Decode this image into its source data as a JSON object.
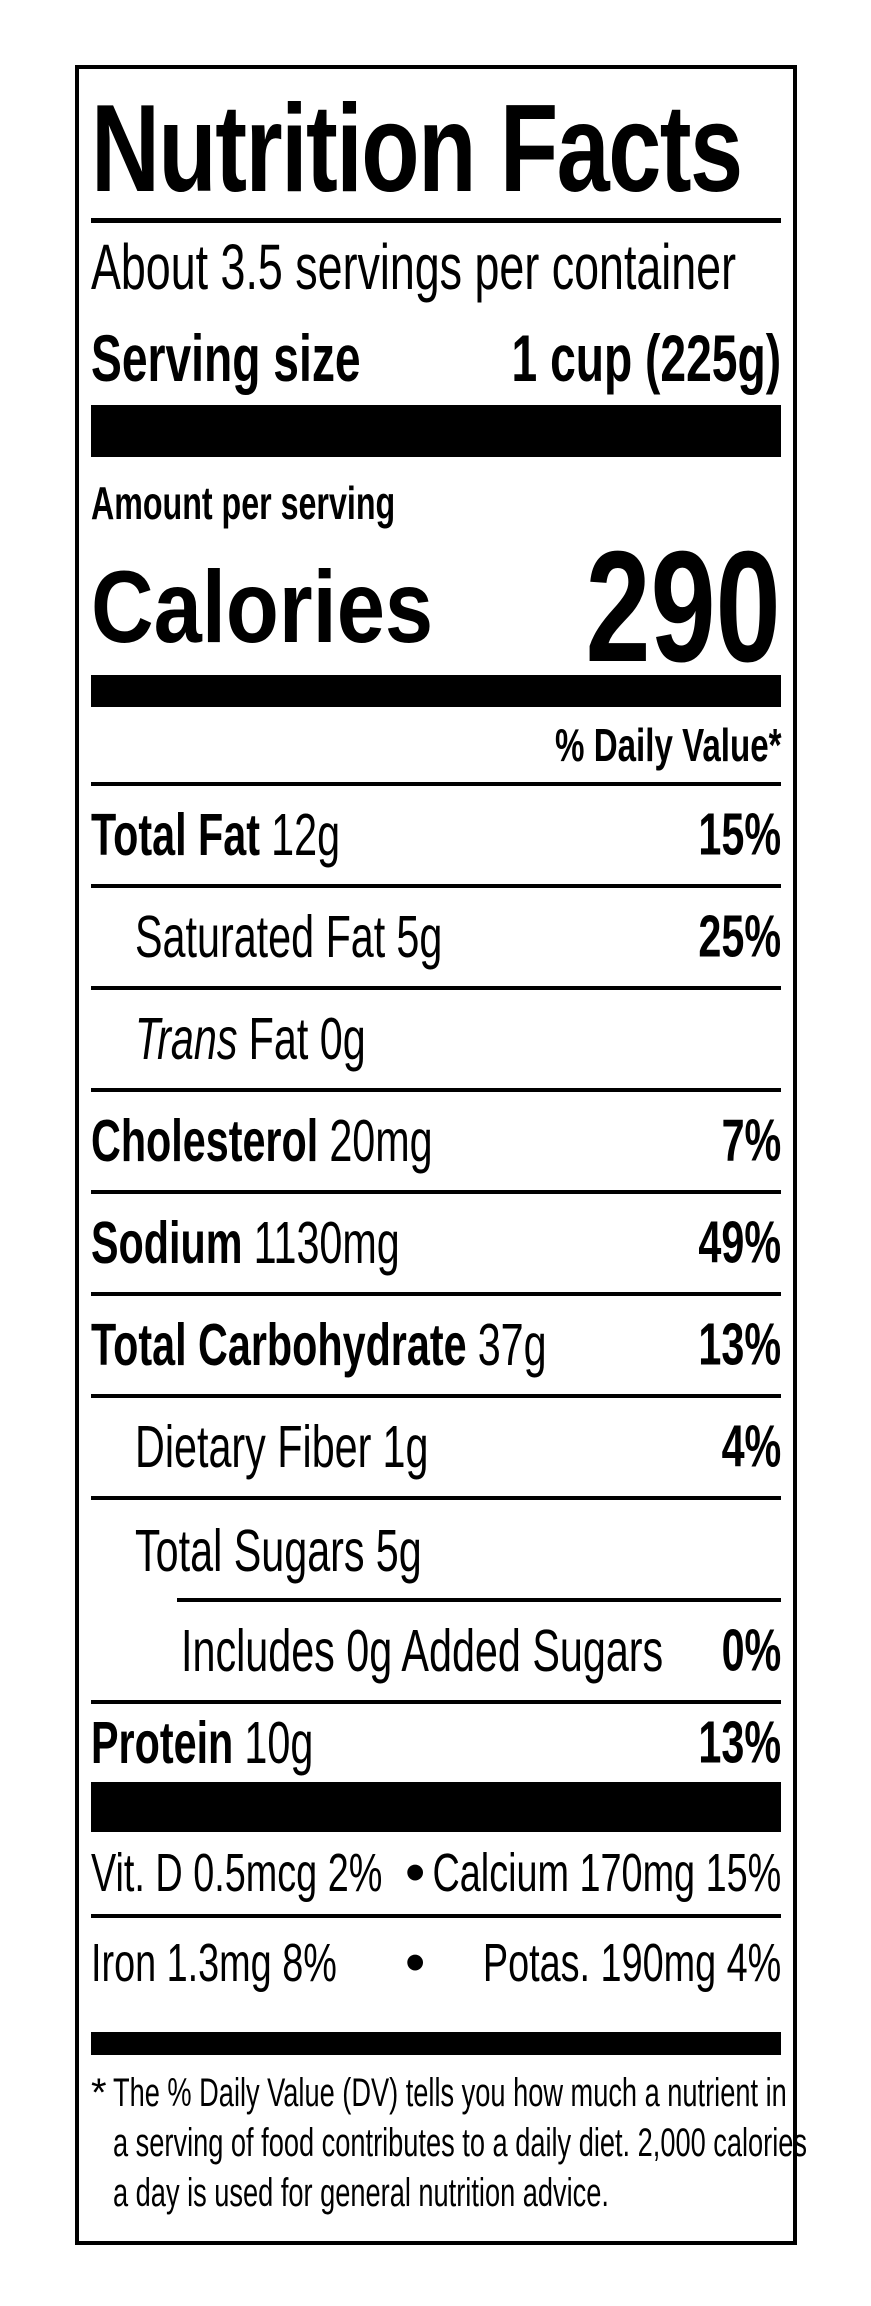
{
  "label": {
    "title": "Nutrition Facts",
    "servings_per_container": "About 3.5 servings per container",
    "serving_size_label": "Serving size",
    "serving_size_value": "1 cup (225g)",
    "amount_per_serving": "Amount per serving",
    "calories_label": "Calories",
    "calories_value": "290",
    "daily_value_header": "% Daily Value*"
  },
  "rows": [
    {
      "name": "Total Fat",
      "amount": "12g",
      "percent": "15%"
    },
    {
      "name": "Saturated Fat",
      "amount": "5g",
      "percent": "25%"
    },
    {
      "name": "Trans",
      "amount": "Fat 0g",
      "percent": ""
    },
    {
      "name": "Cholesterol",
      "amount": "20mg",
      "percent": "7%"
    },
    {
      "name": "Sodium",
      "amount": "1130mg",
      "percent": "49%"
    },
    {
      "name": "Total Carbohydrate",
      "amount": "37g",
      "percent": "13%"
    },
    {
      "name": "Dietary Fiber",
      "amount": "1g",
      "percent": "4%"
    },
    {
      "name": "Total Sugars",
      "amount": "5g",
      "percent": ""
    },
    {
      "name": "Includes 0g Added Sugars",
      "amount": "",
      "percent": "0%"
    },
    {
      "name": "Protein",
      "amount": "10g",
      "percent": "13%"
    }
  ],
  "vitamins": [
    {
      "left": "Vit. D 0.5mcg 2%",
      "right": "Calcium 170mg 15%"
    },
    {
      "left": "Iron 1.3mg 8%",
      "right": "Potas. 190mg 4%"
    }
  ],
  "footnote": {
    "marker": "*",
    "lines": [
      "The % Daily Value (DV) tells you how much a nutrient in",
      "a serving of food contributes to a daily diet. 2,000 calories",
      "a day is used for general nutrition advice."
    ]
  },
  "icons": {
    "bullet": "•"
  },
  "colors": {
    "ink": "#000000",
    "background": "#ffffff"
  }
}
